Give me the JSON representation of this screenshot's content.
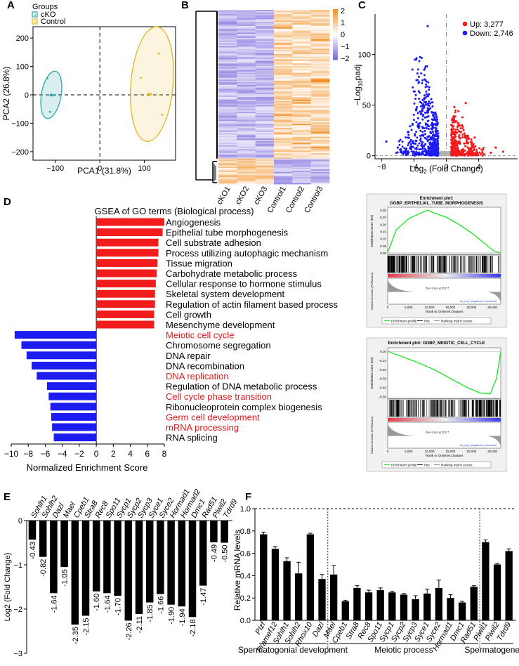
{
  "panel_labels": [
    "A",
    "B",
    "C",
    "D",
    "E",
    "F"
  ],
  "colors": {
    "red": "#f21c1c",
    "blue": "#1c1cf0",
    "teal": "#2aa7a7",
    "gold": "#e6b522",
    "green": "#27e62f",
    "red_text": "#e31a1c"
  },
  "panelA": {
    "legend_title": "Groups",
    "legend_items": [
      "cKO",
      "Control"
    ],
    "xlabel": "PCA1 (31.8%)",
    "ylabel": "PCA2 (26.8%)"
  },
  "panelB": {
    "samples": [
      "cKO1",
      "cKO2",
      "cKO3",
      "Control1",
      "Control2",
      "Control3"
    ],
    "scale_ticks": [
      "2",
      "1",
      "0",
      "−1",
      "−2"
    ]
  },
  "panelC": {
    "xlabel": "Log",
    "xlabel_sub": "2",
    "xlabel_rest": " (Fold Change)",
    "ylabel_pre": "−Log",
    "ylabel_sub": "10",
    "ylabel_post": "padj",
    "legend": [
      "Up: 3,277",
      "Down: 2,746"
    ]
  },
  "panelD": {
    "title": "GSEA of GO terms (Biological process)",
    "xlabel": "Normalized Enrichment Score",
    "enrich_title1": "Enrichment plot:",
    "enrich_sub1": "GOBP_EPITHELIAL_TUBE_MORPHOGENESIS",
    "enrich_title2": "Enrichment plot: GOBP_MEIOTIC_CELL_CYCLE",
    "es_label": "Enrichment score (ES)",
    "rank_label": "Ranked list metric (PreRanked)",
    "rank_x": "Rank in Ordered Dataset",
    "pos_corr": "'na_pos' (positively correlated)",
    "neg_corr": "'na_neg' (negatively correlated)",
    "zero_cross": "Zero cross at 11577",
    "legend": [
      "Enrichment profile",
      "Hits",
      "Ranking metric scores"
    ]
  },
  "panelE": {
    "ylabel": "Log2 (Fold Change)"
  },
  "panelF": {
    "ylabel": "Relative mRNA levels",
    "groups": [
      "Spermatogonial development",
      "Meiotic process",
      "Spermatogenesis"
    ]
  },
  "chart_data": [
    {
      "type": "scatter",
      "panel": "A",
      "xlabel": "PCA1 (31.8%)",
      "ylabel": "PCA2 (26.8%)",
      "xlim": [
        -150,
        170
      ],
      "ylim": [
        -230,
        240
      ],
      "xticks": [
        -100,
        0,
        100
      ],
      "yticks": [
        200,
        100,
        0,
        -100,
        -200
      ],
      "series": [
        {
          "name": "cKO",
          "x": [
            -118,
            -108,
            -100,
            -112,
            -105
          ],
          "y": [
            58,
            0,
            0,
            -60,
            -2
          ]
        },
        {
          "name": "Control",
          "x": [
            92,
            115,
            140,
            110,
            132
          ],
          "y": [
            60,
            3,
            -70,
            5,
            145
          ]
        }
      ]
    },
    {
      "type": "heatmap",
      "panel": "B",
      "columns": [
        "cKO1",
        "cKO2",
        "cKO3",
        "Control1",
        "Control2",
        "Control3"
      ],
      "color_range": [
        -2,
        2
      ]
    },
    {
      "type": "scatter",
      "panel": "C",
      "xlabel": "Log2 (Fold Change)",
      "ylabel": "−Log10padj",
      "xticks": [
        -8,
        -4,
        0,
        4
      ],
      "yticks": [
        0,
        50,
        100
      ],
      "series": [
        {
          "name": "Up: 3,277"
        },
        {
          "name": "Down: 2,746"
        }
      ]
    },
    {
      "type": "bar",
      "panel": "D",
      "orientation": "horizontal",
      "title": "GSEA of GO terms (Biological process)",
      "xlabel": "Normalized Enrichment Score",
      "xlim": [
        -10,
        8
      ],
      "xticks": [
        -10,
        -8,
        -6,
        -4,
        -2,
        0,
        2,
        4,
        6,
        8
      ],
      "categories": [
        "Angiogenesis",
        "Epithelial tube morphogenesis",
        "Cell substrate adhesion",
        "Process utilizing autophagic mechanism",
        "Tissue migration",
        "Carbohydrate metabolic process",
        "Cellular response to hormone stimulus",
        "Skeletal system development",
        "Regulation of actin filament based process",
        "Cell growth",
        "Mesenchyme development",
        "Meiotic cell cycle",
        "Chromosome segregation",
        "DNA repair",
        "DNA recombination",
        "DNA replication",
        "Regulation of DNA metabolic process",
        "Cell cycle phase transition",
        "Ribonucleoprotein complex biogenesis",
        "Germ cell development",
        "mRNA processing",
        "RNA splicing"
      ],
      "values": [
        8.0,
        7.8,
        7.3,
        7.3,
        7.2,
        7.1,
        7.0,
        6.9,
        6.9,
        6.8,
        6.8,
        -9.6,
        -8.8,
        -8.2,
        -7.6,
        -7.0,
        -5.8,
        -5.6,
        -5.4,
        -5.3,
        -5.2,
        -5.0
      ],
      "highlight": [
        "Meiotic cell cycle",
        "DNA replication",
        "Cell cycle phase transition",
        "Germ cell development",
        "mRNA processing"
      ]
    },
    {
      "type": "line",
      "panel": "D-enrichment-1",
      "title": "GOBP_EPITHELIAL_TUBE_MORPHOGENESIS",
      "xlabel": "Rank in Ordered Dataset",
      "ylabel": "Enrichment score (ES)",
      "xticks": [
        0,
        5000,
        10000,
        15000,
        20000,
        25000
      ],
      "yticks": [
        0.0,
        0.05,
        0.1,
        0.15,
        0.2,
        0.25,
        0.3
      ],
      "x": [
        0,
        2000,
        5000,
        8000,
        9500,
        11000,
        14000,
        17000,
        20000,
        23000,
        25500,
        27000
      ],
      "y": [
        0.0,
        0.16,
        0.24,
        0.28,
        0.3,
        0.28,
        0.25,
        0.2,
        0.14,
        0.07,
        0.01,
        0.0
      ]
    },
    {
      "type": "line",
      "panel": "D-enrichment-2",
      "title": "GOBP_MEIOTIC_CELL_CYCLE",
      "xlabel": "Rank in Ordered Dataset",
      "ylabel": "Enrichment score (ES)",
      "xticks": [
        0,
        5000,
        10000,
        15000,
        20000,
        25000
      ],
      "yticks": [
        0.0,
        -0.1,
        -0.2,
        -0.3,
        -0.4,
        -0.5
      ],
      "x": [
        0,
        3000,
        7000,
        11000,
        15000,
        19000,
        22000,
        24500,
        26000,
        27000
      ],
      "y": [
        0.0,
        -0.05,
        -0.12,
        -0.2,
        -0.3,
        -0.4,
        -0.46,
        -0.47,
        -0.3,
        0.0
      ]
    },
    {
      "type": "bar",
      "panel": "E",
      "ylabel": "Log2 (Fold Change)",
      "ylim": [
        -3,
        0
      ],
      "yticks": [
        0,
        -1,
        -2,
        -3
      ],
      "categories": [
        "Sohlh1",
        "Sohlh2",
        "Dazl",
        "Mael",
        "Cpeb1",
        "Stra8",
        "Rec8",
        "Spo11",
        "Sycp1",
        "Sycp2",
        "Sycp3",
        "Syce1",
        "Syce2",
        "Hormad1",
        "Hormad2",
        "Dmc1",
        "Rad51",
        "Piwil2",
        "Tdrd9"
      ],
      "values": [
        -0.43,
        -0.82,
        -1.64,
        -1.05,
        -2.35,
        -2.15,
        -1.6,
        -1.64,
        -1.7,
        -2.26,
        -2.11,
        -1.85,
        -1.66,
        -1.9,
        -1.94,
        -2.18,
        -1.47,
        -0.49,
        -0.5
      ],
      "labels": [
        "-0.43",
        "-0.82",
        "-1.64",
        "-1.05",
        "-2.35",
        "-2.15",
        "-1.60",
        "-1.64",
        "-1.70",
        "-2.26",
        "-2.11",
        "-1.85",
        "-1.66",
        "-1.90",
        "-1.94",
        "-2.18",
        "-1.47",
        "-0.49",
        "-0.50"
      ]
    },
    {
      "type": "bar",
      "panel": "F",
      "ylabel": "Relative mRNA levels",
      "ylim": [
        0,
        1.0
      ],
      "yticks": [
        0.0,
        0.2,
        0.4,
        0.6,
        0.8,
        1.0
      ],
      "categories": [
        "Plzf",
        "Pramef12",
        "Sohlh1",
        "Sohlh2",
        "Rhox10",
        "Dazl",
        "Mael",
        "Cpeb1",
        "Stra8",
        "Rec8",
        "Spo11",
        "Sycp1",
        "Sycp2",
        "Sycp3",
        "Syce1",
        "Syce2",
        "Hormad1",
        "Dmc1",
        "Rad51",
        "Piwil1",
        "Piwil2",
        "Tdrd9"
      ],
      "values": [
        0.77,
        0.64,
        0.53,
        0.42,
        0.77,
        0.37,
        0.41,
        0.17,
        0.29,
        0.25,
        0.27,
        0.25,
        0.23,
        0.19,
        0.24,
        0.29,
        0.2,
        0.16,
        0.3,
        0.7,
        0.5,
        0.62
      ],
      "errors": [
        0.02,
        0.02,
        0.03,
        0.1,
        0.01,
        0.04,
        0.08,
        0.01,
        0.02,
        0.02,
        0.02,
        0.01,
        0.01,
        0.03,
        0.04,
        0.07,
        0.03,
        0.01,
        0.01,
        0.02,
        0.01,
        0.02
      ],
      "groups": [
        {
          "name": "Spermatogonial development",
          "range": [
            0,
            5
          ]
        },
        {
          "name": "Meiotic process",
          "range": [
            6,
            18
          ]
        },
        {
          "name": "Spermatogenesis",
          "range": [
            19,
            21
          ]
        }
      ],
      "reference_line": 1.0
    }
  ]
}
